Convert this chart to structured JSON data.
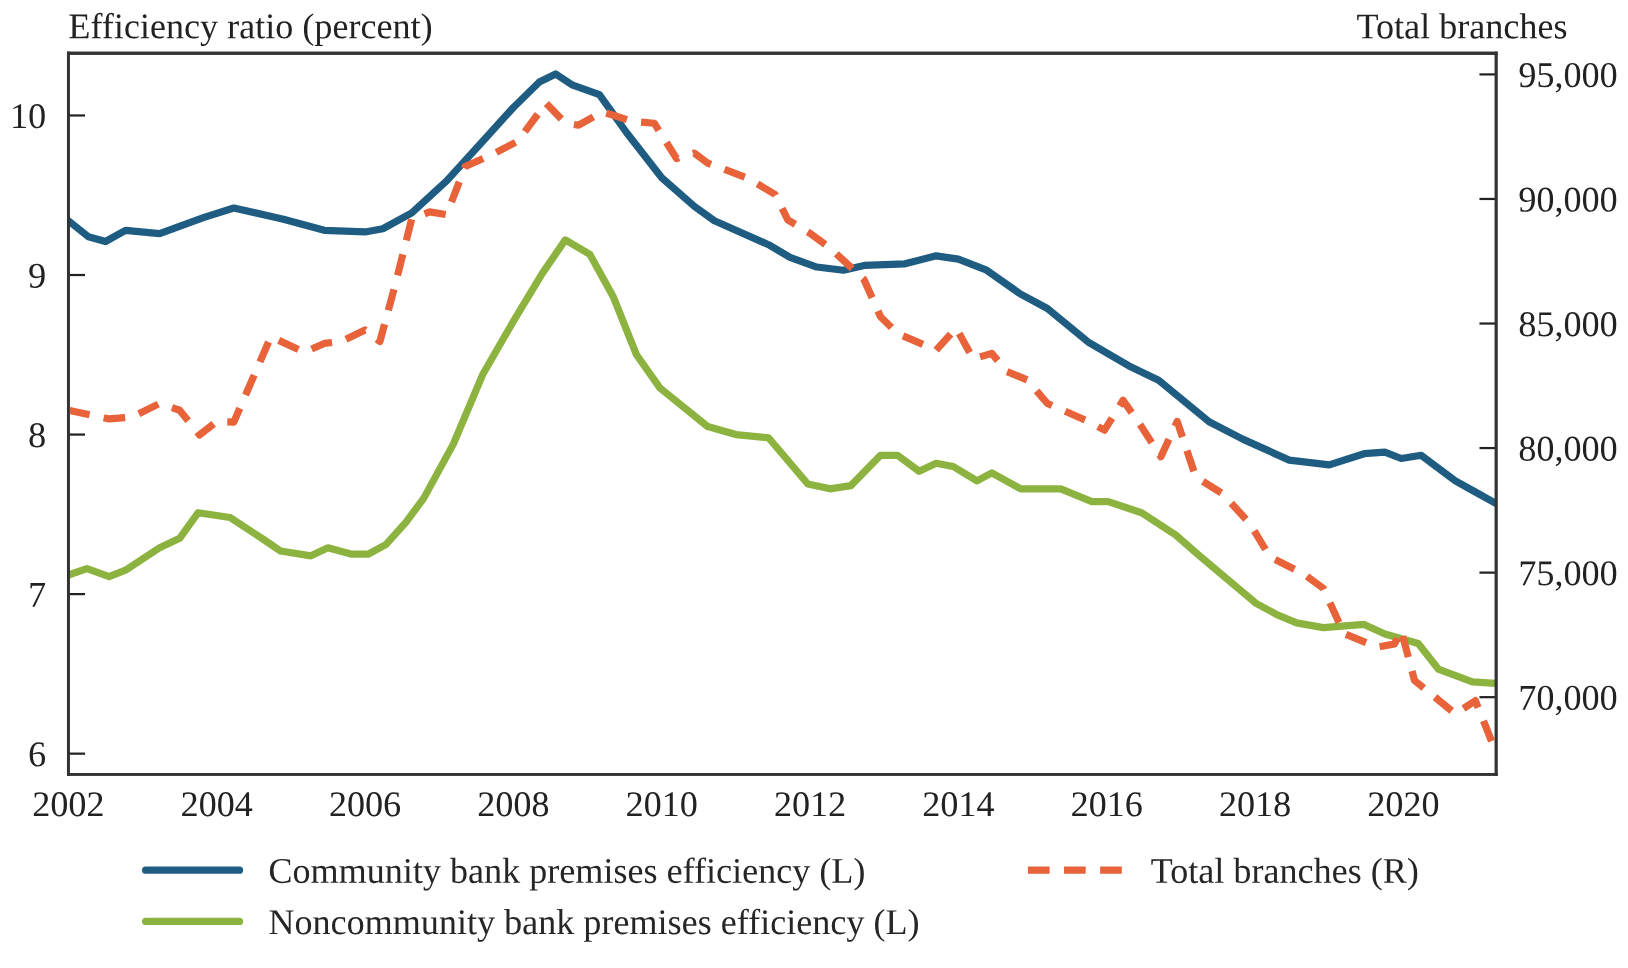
{
  "chart_data": {
    "type": "line",
    "ylabel": "Efficiency ratio (percent)",
    "y2label": "Total branches",
    "xlim": [
      2002,
      2021.25
    ],
    "xticks": [
      2002,
      2004,
      2006,
      2008,
      2010,
      2012,
      2014,
      2016,
      2018,
      2020
    ],
    "ylim": [
      5.87,
      10.39
    ],
    "yticks": [
      6,
      7,
      8,
      9,
      10
    ],
    "y2lim": [
      66900,
      95850
    ],
    "y2ticks": [
      {
        "value": 70000,
        "label": "70,000"
      },
      {
        "value": 75000,
        "label": "75,000"
      },
      {
        "value": 80000,
        "label": "80,000"
      },
      {
        "value": 85000,
        "label": "85,000"
      },
      {
        "value": 90000,
        "label": "90,000"
      },
      {
        "value": 95000,
        "label": "95,000"
      }
    ],
    "grid": false,
    "legend": "bottom",
    "marker": "none",
    "series": [
      {
        "name": "Community bank premises efficiency (L)",
        "color": "#1f5c82",
        "line_style": "solid",
        "x": [
          2002.0,
          2002.27,
          2002.5,
          2002.77,
          2003.23,
          2003.82,
          2004.23,
          2004.9,
          2005.45,
          2006.0,
          2006.24,
          2006.63,
          2007.1,
          2007.59,
          2008.0,
          2008.35,
          2008.57,
          2008.8,
          2009.16,
          2009.53,
          2010.0,
          2010.44,
          2010.71,
          2011.44,
          2011.73,
          2012.09,
          2012.45,
          2012.73,
          2013.28,
          2013.7,
          2014.0,
          2014.38,
          2014.84,
          2015.2,
          2015.75,
          2016.3,
          2016.7,
          2017.38,
          2017.84,
          2018.46,
          2019.0,
          2019.47,
          2019.75,
          2019.97,
          2020.24,
          2020.7,
          2020.97,
          2021.24
        ],
        "values": [
          9.34,
          9.24,
          9.21,
          9.28,
          9.26,
          9.36,
          9.42,
          9.35,
          9.28,
          9.27,
          9.29,
          9.39,
          9.59,
          9.84,
          10.05,
          10.21,
          10.26,
          10.19,
          10.13,
          9.89,
          9.61,
          9.43,
          9.34,
          9.19,
          9.11,
          9.05,
          9.03,
          9.06,
          9.07,
          9.12,
          9.1,
          9.03,
          8.88,
          8.79,
          8.58,
          8.43,
          8.34,
          8.08,
          7.97,
          7.84,
          7.81,
          7.88,
          7.89,
          7.85,
          7.87,
          7.71,
          7.64,
          7.57
        ]
      },
      {
        "name": "Total branches (R)",
        "color": "#e8623a",
        "line_style": "dashed",
        "axis": "y2",
        "x": [
          2002.0,
          2002.55,
          2002.86,
          2003.23,
          2003.5,
          2003.77,
          2004.0,
          2004.23,
          2004.73,
          2005.18,
          2005.45,
          2005.68,
          2006.0,
          2006.2,
          2006.4,
          2006.63,
          2006.87,
          2007.1,
          2007.35,
          2007.75,
          2008.06,
          2008.44,
          2008.7,
          2008.88,
          2009.2,
          2009.6,
          2009.9,
          2010.2,
          2010.44,
          2010.62,
          2011.17,
          2011.53,
          2011.7,
          2012.0,
          2012.27,
          2012.59,
          2012.73,
          2012.95,
          2013.18,
          2013.7,
          2013.97,
          2014.2,
          2014.45,
          2014.65,
          2014.93,
          2015.2,
          2015.75,
          2015.97,
          2016.22,
          2016.47,
          2016.73,
          2016.95,
          2017.2,
          2017.56,
          2017.93,
          2018.2,
          2018.65,
          2018.92,
          2019.2,
          2019.65,
          2019.88,
          2019.97,
          2020.15,
          2020.7,
          2020.97,
          2021.24
        ],
        "values": [
          81520,
          81170,
          81250,
          81790,
          81520,
          80530,
          81070,
          81040,
          84470,
          83850,
          84200,
          84280,
          84740,
          84280,
          86480,
          89210,
          89480,
          89370,
          91300,
          91840,
          92320,
          93850,
          93040,
          92960,
          93500,
          93120,
          93040,
          91620,
          91840,
          91440,
          90820,
          90180,
          89160,
          88620,
          88030,
          87150,
          86750,
          85270,
          84600,
          83930,
          84820,
          83580,
          83800,
          83080,
          82730,
          81790,
          81070,
          80720,
          81920,
          80850,
          79650,
          81070,
          78840,
          78170,
          76970,
          75630,
          74960,
          74370,
          72550,
          72010,
          72140,
          72680,
          70670,
          69330,
          69860,
          67850
        ]
      },
      {
        "name": "Noncommunity bank premises efficiency (L)",
        "color": "#8cb33f",
        "line_style": "solid",
        "x": [
          2002.0,
          2002.25,
          2002.55,
          2002.77,
          2003.23,
          2003.5,
          2003.75,
          2004.18,
          2004.64,
          2004.86,
          2005.27,
          2005.5,
          2005.82,
          2006.04,
          2006.28,
          2006.55,
          2006.79,
          2007.19,
          2007.59,
          2008.0,
          2008.39,
          2008.7,
          2009.03,
          2009.35,
          2009.66,
          2009.98,
          2010.62,
          2011.0,
          2011.44,
          2011.97,
          2012.27,
          2012.55,
          2012.95,
          2013.18,
          2013.47,
          2013.7,
          2013.93,
          2014.25,
          2014.45,
          2014.84,
          2015.38,
          2015.8,
          2016.02,
          2016.47,
          2016.93,
          2017.25,
          2017.61,
          2018.02,
          2018.3,
          2018.56,
          2018.92,
          2019.47,
          2019.75,
          2020.2,
          2020.47,
          2020.93,
          2021.24
        ],
        "values": [
          7.12,
          7.16,
          7.11,
          7.15,
          7.29,
          7.35,
          7.51,
          7.48,
          7.34,
          7.27,
          7.24,
          7.29,
          7.25,
          7.25,
          7.31,
          7.45,
          7.6,
          7.94,
          8.38,
          8.71,
          9.01,
          9.22,
          9.13,
          8.86,
          8.5,
          8.29,
          8.05,
          8.0,
          7.98,
          7.69,
          7.66,
          7.68,
          7.87,
          7.87,
          7.77,
          7.82,
          7.8,
          7.71,
          7.76,
          7.66,
          7.66,
          7.58,
          7.58,
          7.51,
          7.37,
          7.24,
          7.1,
          6.94,
          6.87,
          6.82,
          6.79,
          6.81,
          6.75,
          6.69,
          6.53,
          6.45,
          6.44
        ]
      }
    ]
  }
}
